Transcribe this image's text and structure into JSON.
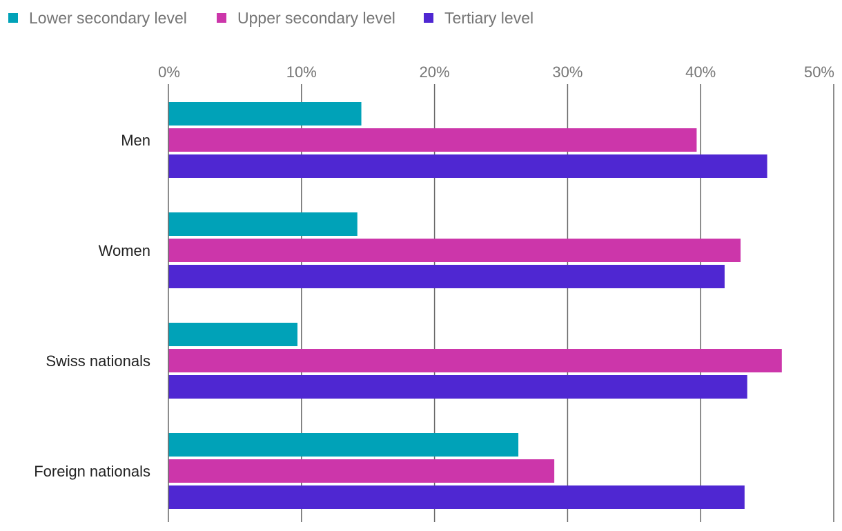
{
  "chart_data": {
    "type": "bar",
    "orientation": "horizontal",
    "categories": [
      "Men",
      "Women",
      "Swiss nationals",
      "Foreign nationals"
    ],
    "series": [
      {
        "name": "Lower secondary level",
        "color": "#00A2B8",
        "values": [
          14.5,
          14.2,
          9.7,
          26.3
        ]
      },
      {
        "name": "Upper secondary level",
        "color": "#CC36AA",
        "values": [
          39.7,
          43.0,
          46.1,
          29.0
        ]
      },
      {
        "name": "Tertiary level",
        "color": "#4F27D2",
        "values": [
          45.0,
          41.8,
          43.5,
          43.3
        ]
      }
    ],
    "x_ticks": [
      "0%",
      "10%",
      "20%",
      "30%",
      "40%",
      "50%"
    ],
    "xlim": [
      0,
      50
    ],
    "grid": true,
    "legend_position": "top-left",
    "title": "",
    "xlabel": "",
    "ylabel": ""
  }
}
